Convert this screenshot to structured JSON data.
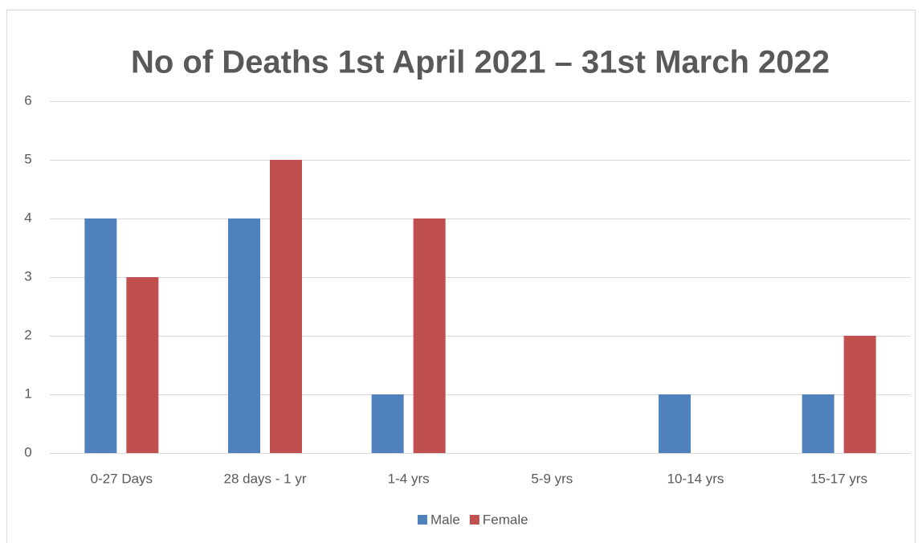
{
  "chart_data": {
    "type": "bar",
    "title": "No of Deaths 1st April 2021 – 31st March 2022",
    "categories": [
      "0-27 Days",
      "28 days - 1 yr",
      "1-4 yrs",
      "5-9 yrs",
      "10-14 yrs",
      "15-17 yrs"
    ],
    "series": [
      {
        "name": "Male",
        "color": "#4f81bd",
        "values": [
          4,
          4,
          1,
          0,
          1,
          1
        ]
      },
      {
        "name": "Female",
        "color": "#c0504d",
        "values": [
          3,
          5,
          4,
          0,
          0,
          2
        ]
      }
    ],
    "ylim": [
      0,
      6
    ],
    "yticks": [
      0,
      1,
      2,
      3,
      4,
      5,
      6
    ],
    "grid": true,
    "legend": "bottom"
  }
}
